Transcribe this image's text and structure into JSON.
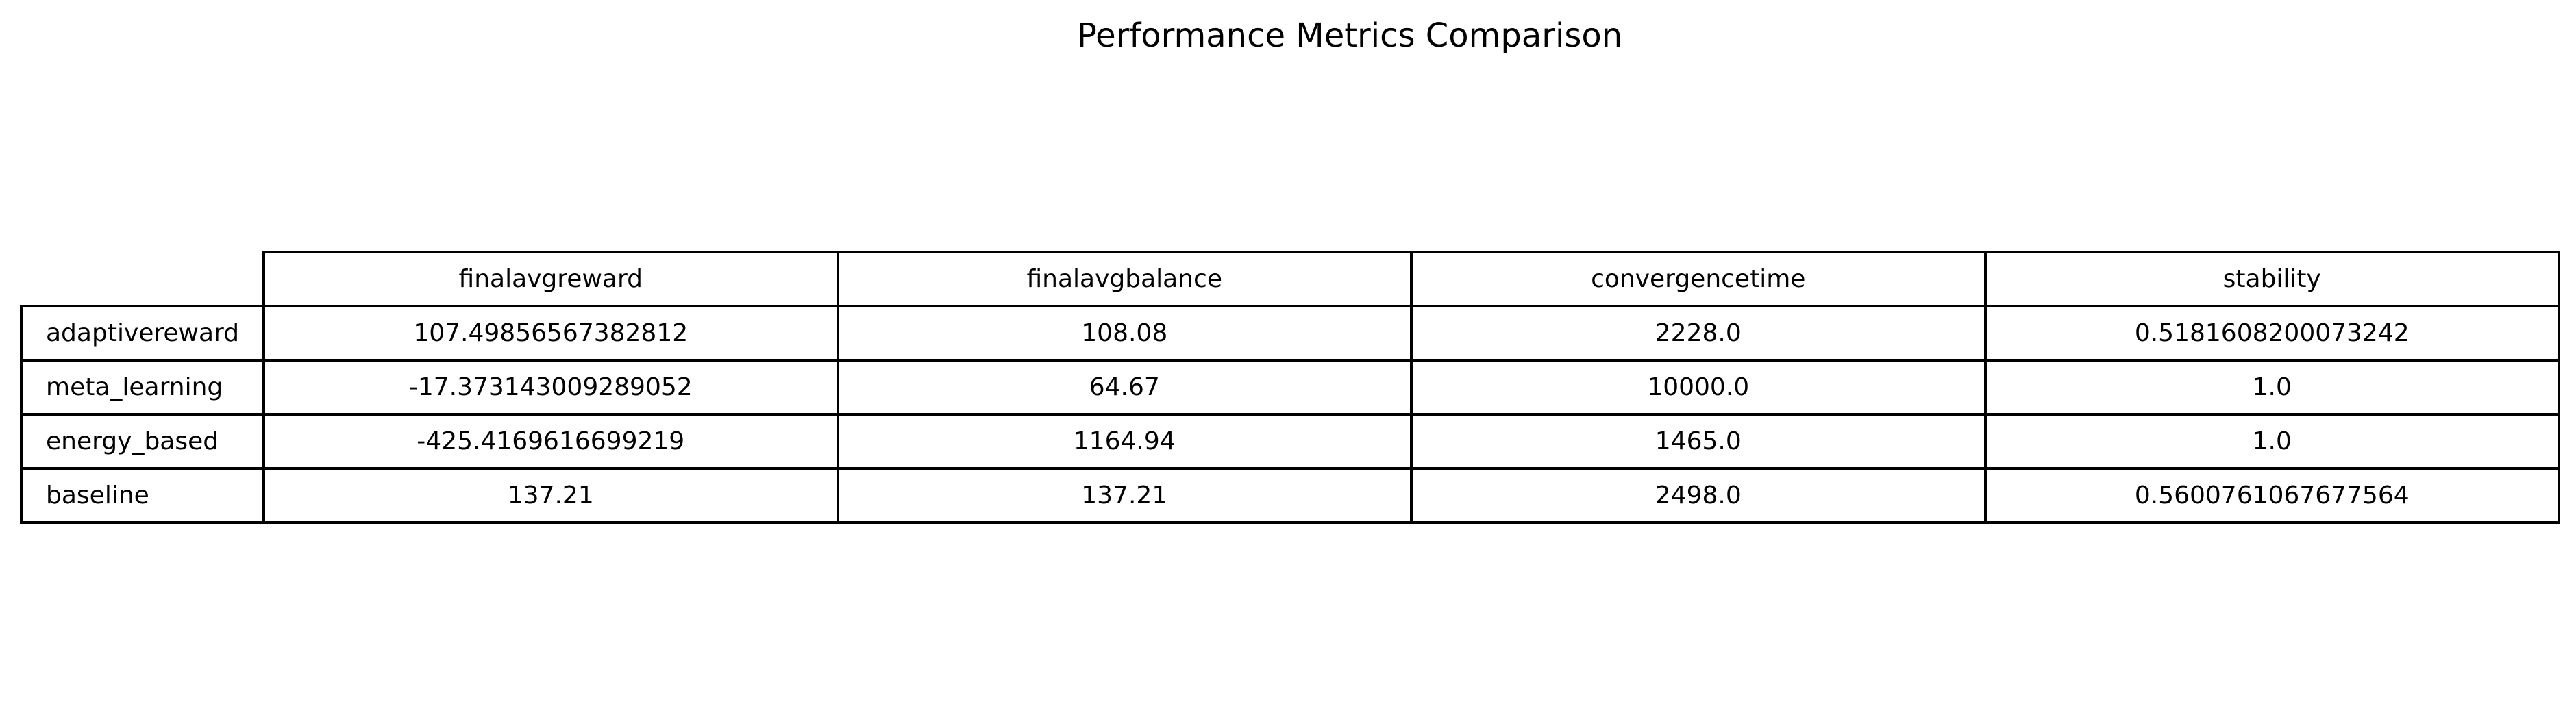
{
  "chart_data": {
    "type": "table",
    "title": "Performance Metrics Comparison",
    "columns": [
      "finalavgreward",
      "finalavgbalance",
      "convergencetime",
      "stability"
    ],
    "rows": [
      {
        "label": "adaptivereward",
        "values": [
          "107.49856567382812",
          "108.08",
          "2228.0",
          "0.5181608200073242"
        ]
      },
      {
        "label": "meta_learning",
        "values": [
          "-17.373143009289052",
          "64.67",
          "10000.0",
          "1.0"
        ]
      },
      {
        "label": "energy_based",
        "values": [
          "-425.4169616699219",
          "1164.94",
          "1465.0",
          "1.0"
        ]
      },
      {
        "label": "baseline",
        "values": [
          "137.21",
          "137.21",
          "2498.0",
          "0.5600761067677564"
        ]
      }
    ]
  }
}
